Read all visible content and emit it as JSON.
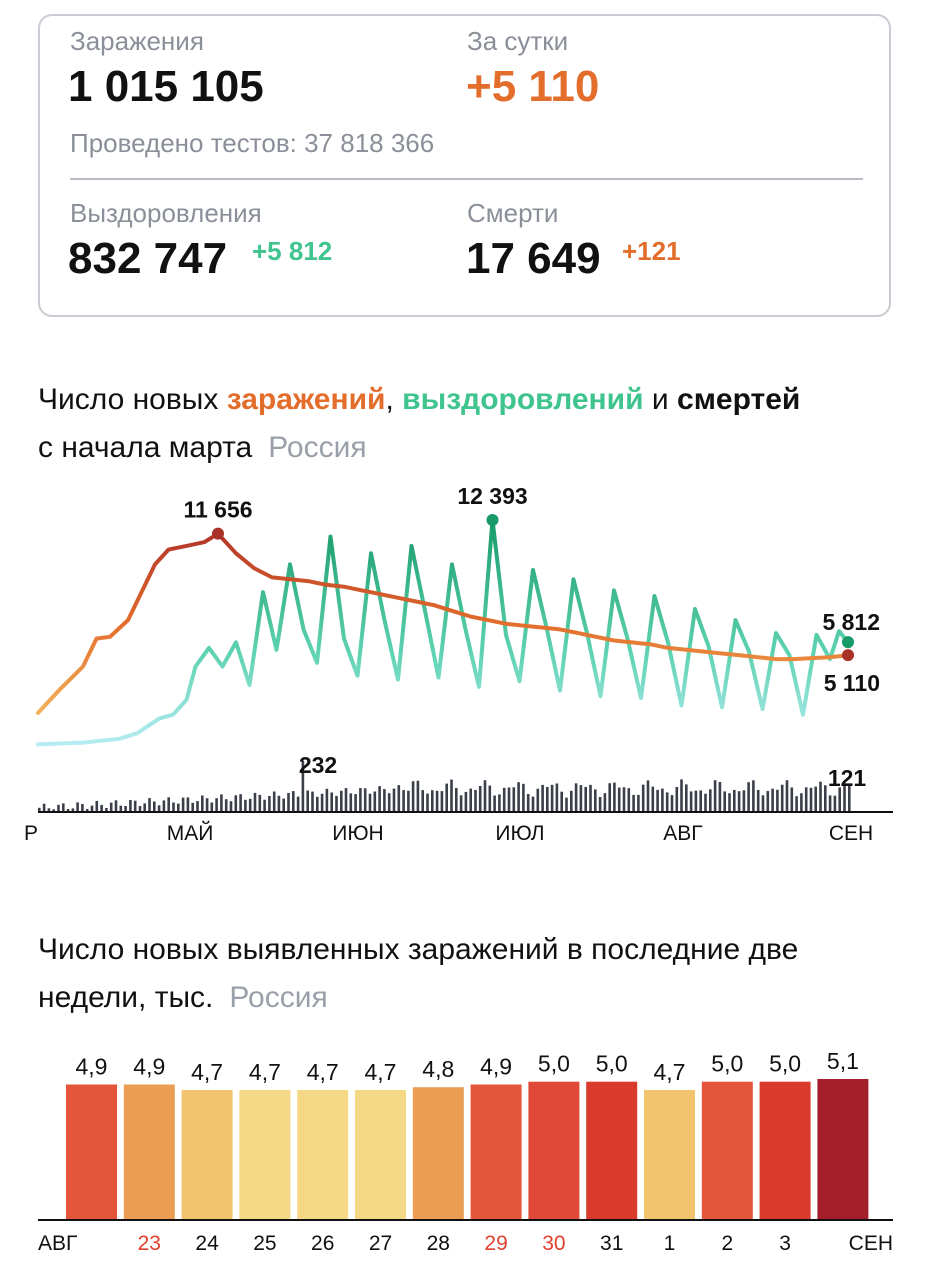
{
  "summary": {
    "infections_label": "Заражения",
    "infections_total": "1 015 105",
    "daily_label": "За сутки",
    "daily_value": "+5 110",
    "tests_label": "Проведено тестов: 37 818 366",
    "recoveries_label": "Выздоровления",
    "recoveries_total": "832 747",
    "recoveries_delta": "+5 812",
    "deaths_label": "Смерти",
    "deaths_total": "17 649",
    "deaths_delta": "+121"
  },
  "colors": {
    "infections": "#e36d2b",
    "recoveries": "#3fc48e",
    "deaths": "#111111",
    "region": "#9aa0aa",
    "red_date": "#e0402d"
  },
  "chart_data": [
    {
      "type": "line",
      "title_parts": {
        "prefix": "Число новых ",
        "infections": "заражений",
        "comma": ",",
        "recoveries": "выздоровлений",
        "and": " и ",
        "deaths": "смертей",
        "line2": "с начала марта",
        "region": "Россия"
      },
      "x_ticks": [
        "Р",
        "МАЙ",
        "ИЮН",
        "ИЮЛ",
        "АВГ",
        "СЕН"
      ],
      "annotations": {
        "infections_peak": "11 656",
        "recoveries_peak": "12 393",
        "recoveries_last": "5 812",
        "infections_last": "5 110",
        "deaths_peak": "232",
        "deaths_last": "121"
      },
      "series": [
        {
          "name": "заражений",
          "key": "infections",
          "anchors": [
            [
              0,
              2000
            ],
            [
              5,
              3300
            ],
            [
              10,
              4500
            ],
            [
              13,
              6000
            ],
            [
              16,
              6100
            ],
            [
              20,
              7000
            ],
            [
              22,
              8000
            ],
            [
              26,
              10000
            ],
            [
              29,
              10800
            ],
            [
              33,
              11000
            ],
            [
              37,
              11200
            ],
            [
              40,
              11656
            ],
            [
              44,
              10600
            ],
            [
              48,
              9800
            ],
            [
              52,
              9300
            ],
            [
              56,
              9200
            ],
            [
              60,
              9100
            ],
            [
              64,
              8900
            ],
            [
              68,
              8800
            ],
            [
              72,
              8600
            ],
            [
              76,
              8400
            ],
            [
              80,
              8200
            ],
            [
              84,
              8000
            ],
            [
              88,
              7800
            ],
            [
              92,
              7500
            ],
            [
              96,
              7200
            ],
            [
              100,
              7000
            ],
            [
              104,
              6800
            ],
            [
              108,
              6700
            ],
            [
              112,
              6600
            ],
            [
              116,
              6500
            ],
            [
              120,
              6300
            ],
            [
              124,
              6100
            ],
            [
              128,
              5900
            ],
            [
              132,
              5800
            ],
            [
              136,
              5700
            ],
            [
              140,
              5500
            ],
            [
              144,
              5400
            ],
            [
              148,
              5300
            ],
            [
              152,
              5200
            ],
            [
              156,
              5100
            ],
            [
              160,
              5000
            ],
            [
              164,
              4900
            ],
            [
              168,
              4900
            ],
            [
              172,
              4950
            ],
            [
              176,
              5000
            ],
            [
              180,
              5110
            ]
          ]
        },
        {
          "name": "выздоровлений",
          "key": "recoveries",
          "anchors": [
            [
              0,
              300
            ],
            [
              10,
              400
            ],
            [
              18,
              600
            ],
            [
              22,
              900
            ],
            [
              27,
              1700
            ],
            [
              30,
              1900
            ],
            [
              33,
              2700
            ],
            [
              35,
              4500
            ],
            [
              38,
              5500
            ],
            [
              41,
              4500
            ],
            [
              44,
              5800
            ],
            [
              47,
              3500
            ],
            [
              50,
              8500
            ],
            [
              53,
              5400
            ],
            [
              56,
              10000
            ],
            [
              59,
              6500
            ],
            [
              62,
              4700
            ],
            [
              65,
              11500
            ],
            [
              68,
              6000
            ],
            [
              71,
              4000
            ],
            [
              74,
              10600
            ],
            [
              77,
              7000
            ],
            [
              80,
              3800
            ],
            [
              83,
              11000
            ],
            [
              86,
              7500
            ],
            [
              89,
              3900
            ],
            [
              92,
              10000
            ],
            [
              95,
              6500
            ],
            [
              98,
              3400
            ],
            [
              101,
              12393
            ],
            [
              104,
              6200
            ],
            [
              107,
              3700
            ],
            [
              110,
              9700
            ],
            [
              113,
              6600
            ],
            [
              116,
              3200
            ],
            [
              119,
              9200
            ],
            [
              122,
              6300
            ],
            [
              125,
              2900
            ],
            [
              128,
              8600
            ],
            [
              131,
              6000
            ],
            [
              134,
              2800
            ],
            [
              137,
              8300
            ],
            [
              140,
              5800
            ],
            [
              143,
              2400
            ],
            [
              146,
              7600
            ],
            [
              149,
              5600
            ],
            [
              152,
              2300
            ],
            [
              155,
              7000
            ],
            [
              158,
              5300
            ],
            [
              161,
              2200
            ],
            [
              164,
              6300
            ],
            [
              167,
              5100
            ],
            [
              170,
              1900
            ],
            [
              173,
              6200
            ],
            [
              176,
              4900
            ],
            [
              178,
              6400
            ],
            [
              180,
              5812
            ]
          ]
        },
        {
          "name": "смертей",
          "key": "deaths",
          "peak": 232,
          "last": 121,
          "count": 170
        }
      ]
    },
    {
      "type": "bar",
      "title_line1": "Число новых выявленных заражений в последние две",
      "title_line2": "недели, тыс.",
      "region": "Россия",
      "values": [
        4.9,
        4.9,
        4.7,
        4.7,
        4.7,
        4.7,
        4.8,
        4.9,
        5.0,
        5.0,
        4.7,
        5.0,
        5.0,
        5.1
      ],
      "value_labels": [
        "4,9",
        "4,9",
        "4,7",
        "4,7",
        "4,7",
        "4,7",
        "4,8",
        "4,9",
        "5,0",
        "5,0",
        "4,7",
        "5,0",
        "5,0",
        "5,1"
      ],
      "bar_colors": [
        "#e4553a",
        "#eb9d54",
        "#f2c46e",
        "#f5d886",
        "#f5d886",
        "#f5d886",
        "#eb9d54",
        "#e4553a",
        "#e04837",
        "#d93a2c",
        "#f2c46e",
        "#e4553a",
        "#d93a2c",
        "#a31f2b"
      ],
      "x_labels": [
        "АВГ",
        "23",
        "24",
        "25",
        "26",
        "27",
        "28",
        "29",
        "30",
        "31",
        "1",
        "2",
        "3",
        "СЕН"
      ],
      "x_label_colors": [
        "#111",
        "#e0402d",
        "#111",
        "#111",
        "#111",
        "#111",
        "#111",
        "#e0402d",
        "#e0402d",
        "#111",
        "#111",
        "#111",
        "#111",
        "#111"
      ]
    }
  ]
}
